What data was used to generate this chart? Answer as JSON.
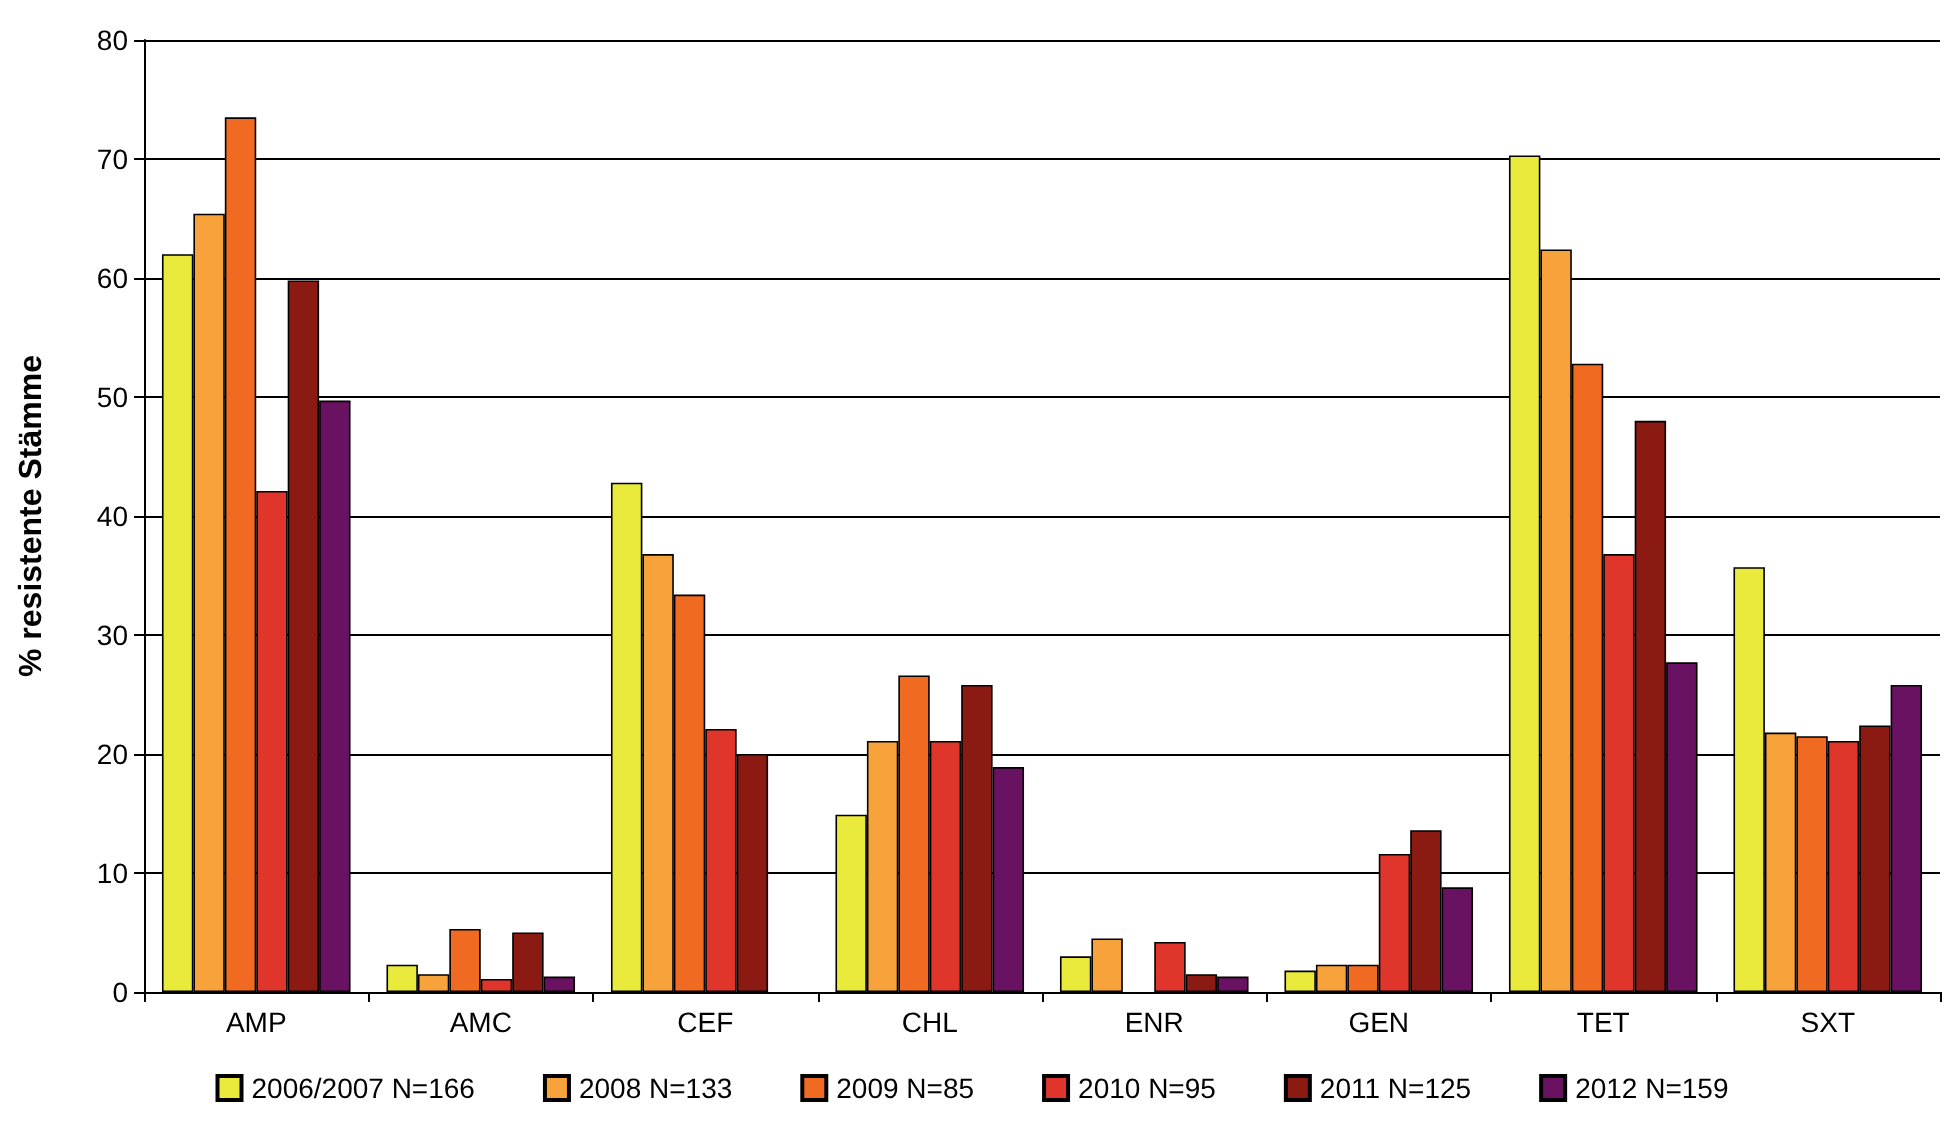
{
  "chart_data": {
    "type": "bar",
    "ylabel": "% resistente Stämme",
    "categories": [
      "AMP",
      "AMC",
      "CEF",
      "CHL",
      "ENR",
      "GEN",
      "TET",
      "SXT"
    ],
    "series": [
      {
        "name": "2006/2007 N=166",
        "color": "#eaea3c",
        "values": [
          62,
          2.3,
          42.8,
          14.9,
          3,
          1.8,
          70.3,
          35.7
        ]
      },
      {
        "name": "2008 N=133",
        "color": "#f7a23a",
        "values": [
          65.4,
          1.5,
          36.8,
          21.1,
          4.5,
          2.3,
          62.4,
          21.8
        ]
      },
      {
        "name": "2009 N=85",
        "color": "#f06a22",
        "values": [
          73.5,
          5.3,
          33.4,
          26.6,
          null,
          2.3,
          52.8,
          21.5
        ]
      },
      {
        "name": "2010 N=95",
        "color": "#e0352a",
        "values": [
          42.1,
          1.1,
          22.1,
          21.1,
          4.2,
          11.6,
          36.8,
          21.1
        ]
      },
      {
        "name": "2011 N=125",
        "color": "#8a1a12",
        "values": [
          59.8,
          5,
          20,
          25.8,
          1.5,
          13.6,
          48,
          22.4
        ]
      },
      {
        "name": "2012 N=159",
        "color": "#6a1262",
        "values": [
          49.7,
          1.3,
          null,
          18.9,
          1.3,
          8.8,
          27.7,
          25.8
        ]
      }
    ],
    "ylim": [
      0,
      80
    ],
    "yticks": [
      0,
      10,
      20,
      30,
      40,
      50,
      60,
      70,
      80
    ],
    "grid": "y",
    "legend": "bottom"
  }
}
